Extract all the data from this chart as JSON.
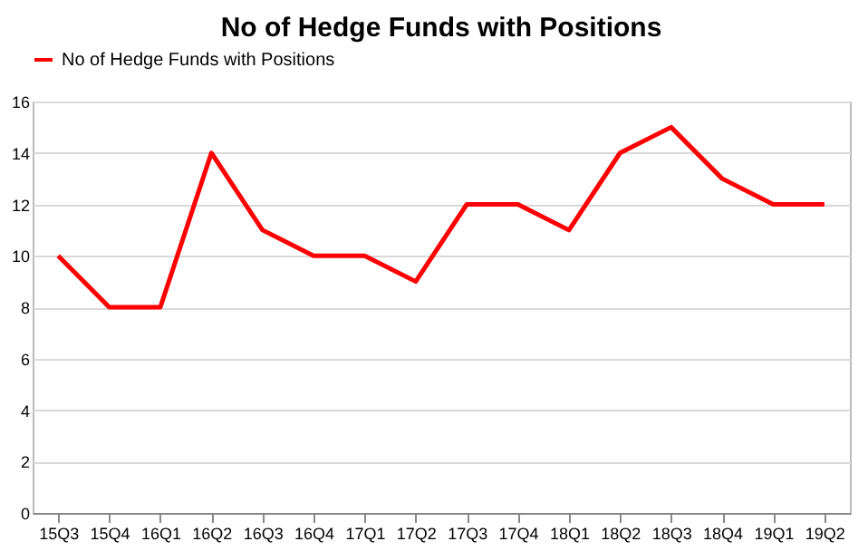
{
  "chart_data": {
    "type": "line",
    "title": "No of Hedge Funds with Positions",
    "categories": [
      "15Q3",
      "15Q4",
      "16Q1",
      "16Q2",
      "16Q3",
      "16Q4",
      "17Q1",
      "17Q2",
      "17Q3",
      "17Q4",
      "18Q1",
      "18Q2",
      "18Q3",
      "18Q4",
      "19Q1",
      "19Q2"
    ],
    "series": [
      {
        "name": "No of Hedge Funds with Positions",
        "color": "#ff0000",
        "values": [
          10,
          8,
          8,
          14,
          11,
          10,
          10,
          9,
          12,
          12,
          11,
          14,
          15,
          13,
          12,
          12
        ]
      }
    ],
    "ylim": [
      0,
      16
    ],
    "yticks": [
      0,
      2,
      4,
      6,
      8,
      10,
      12,
      14,
      16
    ],
    "grid": "y",
    "legend": "top",
    "marker": "none",
    "line_style": "solid"
  }
}
